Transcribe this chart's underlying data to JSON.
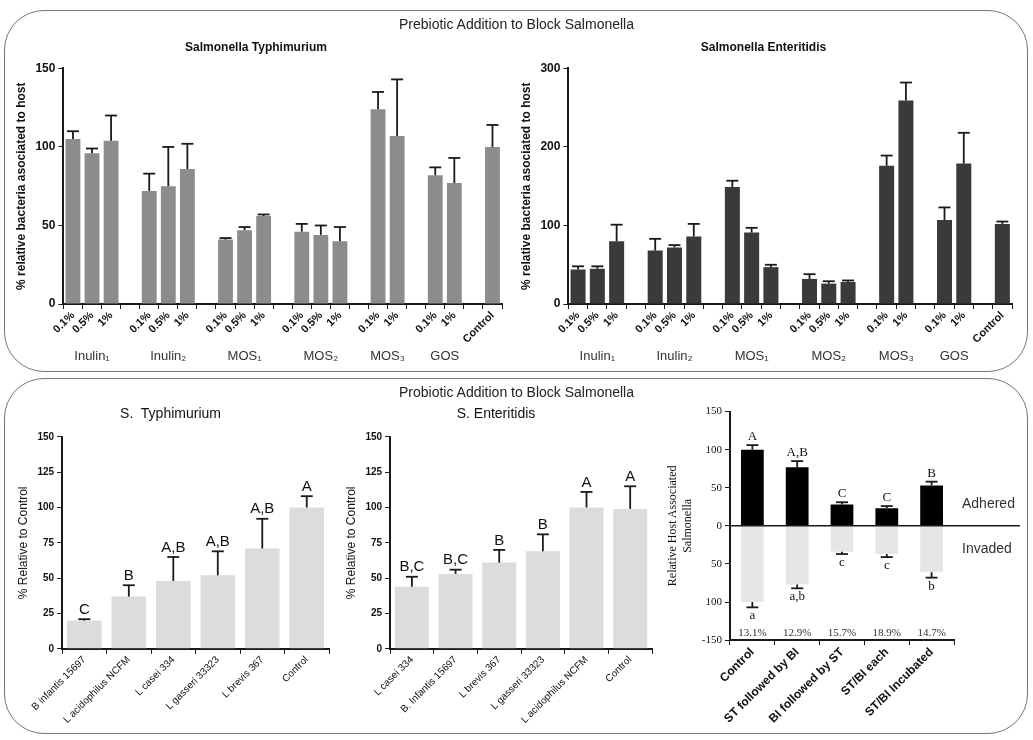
{
  "chart_data": [
    {
      "type": "bar",
      "title": "Prebiotic Addition to Block Salmonella",
      "subtitle": "Salmonella Typhimurium",
      "ylabel": "% relative bacteria asociated to host",
      "categories": [
        "0.1%",
        "0.5%",
        "1%",
        null,
        "0.1%",
        "0.5%",
        "1%",
        null,
        "0.1%",
        "0.5%",
        "1%",
        null,
        "0.1%",
        "0.5%",
        "1%",
        null,
        "0.1%",
        "1%",
        null,
        "0.1%",
        "1%",
        null,
        "Control"
      ],
      "series": [
        {
          "color": "#8c8c8c",
          "values": [
            105,
            96,
            104,
            null,
            72,
            75,
            86,
            null,
            41,
            47,
            56,
            null,
            46,
            44,
            40,
            null,
            124,
            107,
            null,
            82,
            77,
            null,
            100
          ],
          "errors": [
            [
              105,
              110
            ],
            [
              96,
              99
            ],
            [
              104,
              120
            ],
            null,
            [
              72,
              83
            ],
            [
              75,
              100
            ],
            [
              86,
              102
            ],
            null,
            [
              41,
              42
            ],
            [
              47,
              49
            ],
            [
              56,
              57
            ],
            null,
            [
              46,
              51
            ],
            [
              44,
              50
            ],
            [
              40,
              49
            ],
            null,
            [
              124,
              135
            ],
            [
              107,
              143
            ],
            null,
            [
              82,
              87
            ],
            [
              77,
              93
            ],
            null,
            [
              100,
              114
            ]
          ]
        }
      ],
      "ylim": [
        0,
        150
      ],
      "yticks": [
        0,
        50,
        100,
        150
      ],
      "annotations": [
        "Inulin₁",
        "Inulin₂",
        "MOS₁",
        "MOS₂",
        "MOS₃",
        "GOS"
      ]
    },
    {
      "type": "bar",
      "subtitle": "Salmonella Enteritidis",
      "ylabel": "% relative bacteria asociated to host",
      "categories": [
        "0.1%",
        "0.5%",
        "1%",
        null,
        "0.1%",
        "0.5%",
        "1%",
        null,
        "0.1%",
        "0.5%",
        "1%",
        null,
        "0.1%",
        "0.5%",
        "1%",
        null,
        "0.1%",
        "1%",
        null,
        "0.1%",
        "1%",
        null,
        "Control"
      ],
      "series": [
        {
          "color": "#3a3a3a",
          "values": [
            44,
            45,
            80,
            null,
            68,
            72,
            86,
            null,
            149,
            91,
            47,
            null,
            32,
            26,
            28,
            null,
            176,
            259,
            null,
            107,
            179,
            null,
            102
          ],
          "errors": [
            [
              44,
              48
            ],
            [
              45,
              48
            ],
            [
              80,
              101
            ],
            null,
            [
              68,
              83
            ],
            [
              72,
              75
            ],
            [
              86,
              102
            ],
            null,
            [
              149,
              157
            ],
            [
              91,
              97
            ],
            [
              47,
              50
            ],
            null,
            [
              32,
              38
            ],
            [
              26,
              29
            ],
            [
              28,
              30
            ],
            null,
            [
              176,
              189
            ],
            [
              259,
              282
            ],
            null,
            [
              107,
              123
            ],
            [
              179,
              218
            ],
            null,
            [
              102,
              105
            ]
          ]
        }
      ],
      "ylim": [
        0,
        300
      ],
      "yticks": [
        0,
        100,
        200,
        300
      ],
      "annotations": [
        "Inulin₁",
        "Inulin₂",
        "MOS₁",
        "MOS₂",
        "MOS₃",
        "GOS"
      ]
    },
    {
      "type": "bar",
      "subtitle": "S.  Typhimurium",
      "ylabel": "% Relative to Control",
      "categories": [
        "B infantis 15697",
        "L acidophilus NCFM",
        "L casei 334",
        "L gasseri 33323",
        "L brevis 367",
        "Control"
      ],
      "series": [
        {
          "color": "#dcdcdc",
          "values": [
            20,
            37,
            48,
            52,
            71,
            100
          ],
          "errors": [
            [
              20,
              21
            ],
            [
              37,
              45
            ],
            [
              48,
              65
            ],
            [
              52,
              69
            ],
            [
              71,
              92
            ],
            [
              100,
              108
            ]
          ],
          "value_labels": [
            "C",
            "B",
            "A,B",
            "A,B",
            "A,B",
            "A"
          ]
        }
      ],
      "ylim": [
        0,
        150
      ],
      "yticks": [
        0,
        25,
        50,
        75,
        100,
        125,
        150
      ]
    },
    {
      "type": "bar",
      "title": "Probiotic Addition to Block Salmonella",
      "subtitle": "S. Enteritidis",
      "ylabel": "% Relative to Control",
      "categories": [
        "L casei 334",
        "B. Infantis 15697",
        "L brevis 367",
        "L gasseri 33323",
        "L acidophilus NCFM",
        "Control"
      ],
      "series": [
        {
          "color": "#dcdcdc",
          "values": [
            44,
            53,
            61,
            69,
            100,
            99
          ],
          "errors": [
            [
              44,
              51
            ],
            [
              53,
              56
            ],
            [
              61,
              70
            ],
            [
              69,
              81
            ],
            [
              100,
              111
            ],
            [
              99,
              115
            ]
          ],
          "value_labels": [
            "B,C",
            "B,C",
            "B",
            "B",
            "A",
            "A"
          ]
        }
      ],
      "ylim": [
        0,
        150
      ],
      "yticks": [
        0,
        25,
        50,
        75,
        100,
        125,
        150
      ]
    },
    {
      "type": "bar",
      "ylabel": "Relative Host Associated\nSalmonella",
      "categories": [
        "Control",
        "ST followed by BI",
        "BI followed by ST",
        "ST/BI each",
        "ST/BI Incubated"
      ],
      "stacked": true,
      "series": [
        {
          "name": "Adhered",
          "color": "#000000",
          "values": [
            100,
            77,
            28,
            23,
            53
          ],
          "errors": [
            [
              100,
              106
            ],
            [
              77,
              85
            ],
            [
              28,
              31
            ],
            [
              23,
              26
            ],
            [
              53,
              58
            ]
          ],
          "value_labels": [
            "A",
            "A,B",
            "C",
            "C",
            "B"
          ]
        },
        {
          "name": "Invaded",
          "color": "#e6e6e6",
          "values": [
            -100,
            -77,
            -34,
            -37,
            -61
          ],
          "errors": [
            [
              -107,
              -100
            ],
            [
              -82,
              -77
            ],
            [
              -37,
              -34
            ],
            [
              -41,
              -37
            ],
            [
              -68,
              -61
            ]
          ],
          "value_labels": [
            "a",
            "a,b",
            "c",
            "c",
            "b"
          ]
        }
      ],
      "ylim": [
        -150,
        150
      ],
      "yticks": [
        {
          "value": -150,
          "label": "-150"
        },
        {
          "value": -100,
          "label": "100"
        },
        {
          "value": -50,
          "label": "50"
        },
        0,
        50,
        100,
        150
      ],
      "ref_lines": [
        {
          "axis": "y",
          "value": 0
        }
      ],
      "annotations": [
        "13.1%",
        "12.9%",
        "15.7%",
        "18.9%",
        "14.7%"
      ]
    }
  ]
}
